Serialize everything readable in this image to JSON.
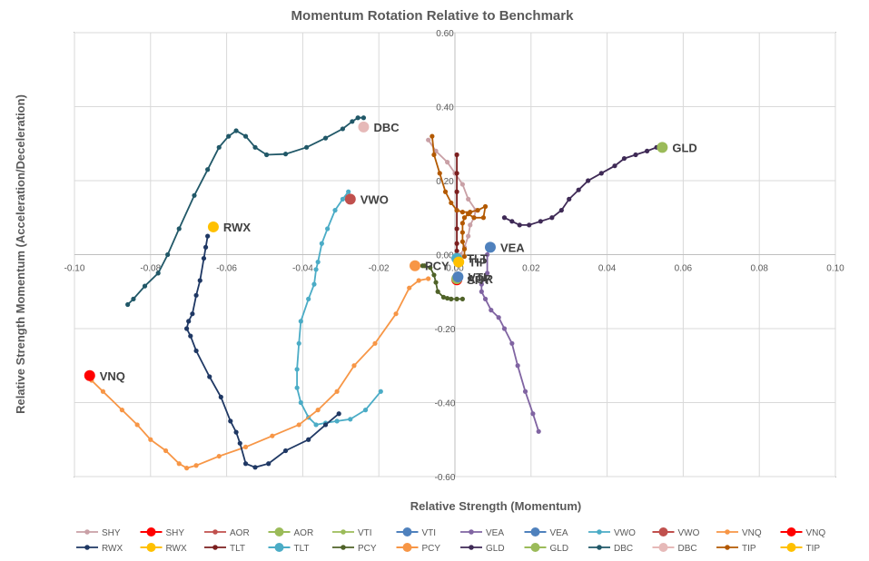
{
  "chart_data": {
    "type": "scatter",
    "title": "Momentum Rotation Relative to Benchmark",
    "xlabel": "Relative Strength (Momentum)",
    "ylabel": "Relative Strength Momentum (Acceleration/Deceleration)",
    "xlim": [
      -0.1,
      0.1
    ],
    "ylim": [
      -0.6,
      0.6
    ],
    "x_ticks": [
      "-0.10",
      "-0.08",
      "-0.06",
      "-0.04",
      "-0.02",
      "0.00",
      "0.02",
      "0.04",
      "0.06",
      "0.08",
      "0.10"
    ],
    "y_ticks": [
      "0.60",
      "0.40",
      "0.20",
      "0.00",
      "-0.20",
      "-0.40",
      "-0.60"
    ],
    "grid": true,
    "legend_position": "bottom",
    "series": [
      {
        "name": "SHY",
        "color": "#c9a0a6",
        "label": "SHY",
        "label_color": "#ff0000",
        "trail": [
          [
            0.0015,
            0.0
          ],
          [
            0.0025,
            0.02
          ],
          [
            0.0035,
            0.05
          ],
          [
            0.004,
            0.08
          ],
          [
            0.005,
            0.1
          ],
          [
            0.0055,
            0.12
          ],
          [
            0.0035,
            0.15
          ],
          [
            0.002,
            0.19
          ],
          [
            0.0,
            0.22
          ],
          [
            -0.002,
            0.25
          ],
          [
            -0.005,
            0.28
          ],
          [
            -0.007,
            0.31
          ]
        ],
        "current": [
          0.0005,
          -0.068
        ]
      },
      {
        "name": "AOR",
        "color": "#c0504d",
        "label": "AOR",
        "label_color": "#9bbb59",
        "trail": [],
        "current": [
          0.0005,
          -0.065
        ]
      },
      {
        "name": "VTI",
        "color": "#9bbb59",
        "label": "VTI",
        "label_color": "#4f81bd",
        "trail": [],
        "current": [
          0.0008,
          -0.06
        ]
      },
      {
        "name": "VEA",
        "color": "#8064a2",
        "label": "VEA",
        "label_color": "#4f81bd",
        "trail": [
          [
            0.022,
            -0.478
          ],
          [
            0.0205,
            -0.43
          ],
          [
            0.0185,
            -0.37
          ],
          [
            0.0165,
            -0.3
          ],
          [
            0.015,
            -0.24
          ],
          [
            0.013,
            -0.2
          ],
          [
            0.0115,
            -0.17
          ],
          [
            0.0095,
            -0.15
          ],
          [
            0.008,
            -0.12
          ],
          [
            0.007,
            -0.1
          ],
          [
            0.007,
            -0.08
          ],
          [
            0.0085,
            -0.05
          ],
          [
            0.0085,
            0.0
          ],
          [
            0.009,
            0.02
          ]
        ],
        "current": [
          0.0093,
          0.02
        ]
      },
      {
        "name": "VWO",
        "color": "#4bacc6",
        "label": "VWO",
        "label_color": "#c0504d",
        "trail": [
          [
            -0.0195,
            -0.37
          ],
          [
            -0.0235,
            -0.42
          ],
          [
            -0.0275,
            -0.445
          ],
          [
            -0.031,
            -0.45
          ],
          [
            -0.034,
            -0.455
          ],
          [
            -0.0365,
            -0.46
          ],
          [
            -0.0385,
            -0.44
          ],
          [
            -0.0405,
            -0.4
          ],
          [
            -0.0415,
            -0.36
          ],
          [
            -0.0415,
            -0.31
          ],
          [
            -0.041,
            -0.24
          ],
          [
            -0.0405,
            -0.18
          ],
          [
            -0.0385,
            -0.12
          ],
          [
            -0.037,
            -0.08
          ],
          [
            -0.0365,
            -0.04
          ],
          [
            -0.036,
            -0.02
          ],
          [
            -0.035,
            0.03
          ],
          [
            -0.0335,
            0.07
          ],
          [
            -0.0315,
            0.12
          ],
          [
            -0.0295,
            0.15
          ],
          [
            -0.028,
            0.17
          ]
        ],
        "current": [
          -0.0275,
          0.15
        ]
      },
      {
        "name": "VNQ",
        "color": "#f79646",
        "label": "VNQ",
        "label_color": "#ff0000",
        "trail": [
          [
            -0.007,
            -0.065
          ],
          [
            -0.0095,
            -0.07
          ],
          [
            -0.012,
            -0.09
          ],
          [
            -0.0155,
            -0.16
          ],
          [
            -0.021,
            -0.24
          ],
          [
            -0.0265,
            -0.3
          ],
          [
            -0.031,
            -0.37
          ],
          [
            -0.036,
            -0.42
          ],
          [
            -0.041,
            -0.46
          ],
          [
            -0.048,
            -0.49
          ],
          [
            -0.055,
            -0.52
          ],
          [
            -0.062,
            -0.545
          ],
          [
            -0.068,
            -0.57
          ],
          [
            -0.0705,
            -0.577
          ],
          [
            -0.0725,
            -0.565
          ],
          [
            -0.076,
            -0.53
          ],
          [
            -0.08,
            -0.5
          ],
          [
            -0.0835,
            -0.46
          ],
          [
            -0.0875,
            -0.42
          ],
          [
            -0.0925,
            -0.37
          ],
          [
            -0.0955,
            -0.34
          ]
        ],
        "current": [
          -0.096,
          -0.327
        ]
      },
      {
        "name": "RWX",
        "color": "#1f3864",
        "label": "RWX",
        "label_color": "#ffc000",
        "trail": [
          [
            -0.0305,
            -0.43
          ],
          [
            -0.034,
            -0.46
          ],
          [
            -0.0385,
            -0.5
          ],
          [
            -0.0445,
            -0.53
          ],
          [
            -0.049,
            -0.565
          ],
          [
            -0.0525,
            -0.575
          ],
          [
            -0.055,
            -0.565
          ],
          [
            -0.0565,
            -0.51
          ],
          [
            -0.0575,
            -0.48
          ],
          [
            -0.059,
            -0.45
          ],
          [
            -0.0615,
            -0.385
          ],
          [
            -0.0645,
            -0.33
          ],
          [
            -0.068,
            -0.26
          ],
          [
            -0.0695,
            -0.22
          ],
          [
            -0.0705,
            -0.2
          ],
          [
            -0.07,
            -0.18
          ],
          [
            -0.069,
            -0.16
          ],
          [
            -0.068,
            -0.11
          ],
          [
            -0.067,
            -0.07
          ],
          [
            -0.066,
            -0.01
          ],
          [
            -0.0655,
            0.02
          ],
          [
            -0.065,
            0.05
          ]
        ],
        "current": [
          -0.0635,
          0.075
        ]
      },
      {
        "name": "TLT",
        "color": "#7b1f1f",
        "label": "TLT",
        "label_color": "#4bacc6",
        "trail": [
          [
            0.0005,
            0.27
          ],
          [
            0.0005,
            0.22
          ],
          [
            0.0005,
            0.17
          ],
          [
            0.0005,
            0.12
          ],
          [
            0.0005,
            0.07
          ],
          [
            0.0005,
            0.03
          ],
          [
            0.0005,
            0.01
          ]
        ],
        "current": [
          0.0005,
          -0.01
        ]
      },
      {
        "name": "PCY",
        "color": "#4f6228",
        "label": "PCY",
        "label_color": "#f79646",
        "trail": [
          [
            0.002,
            -0.12
          ],
          [
            0.0005,
            -0.12
          ],
          [
            -0.001,
            -0.12
          ],
          [
            -0.002,
            -0.118
          ],
          [
            -0.003,
            -0.115
          ],
          [
            -0.0045,
            -0.1
          ],
          [
            -0.005,
            -0.075
          ],
          [
            -0.0055,
            -0.055
          ],
          [
            -0.0065,
            -0.035
          ],
          [
            -0.008,
            -0.03
          ],
          [
            -0.0085,
            -0.03
          ]
        ],
        "current": [
          -0.0105,
          -0.03
        ]
      },
      {
        "name": "GLD",
        "color": "#3f2a56",
        "label": "GLD",
        "label_color": "#9bbb59",
        "trail": [
          [
            0.013,
            0.1
          ],
          [
            0.015,
            0.09
          ],
          [
            0.017,
            0.08
          ],
          [
            0.0195,
            0.08
          ],
          [
            0.0225,
            0.09
          ],
          [
            0.0255,
            0.1
          ],
          [
            0.028,
            0.12
          ],
          [
            0.03,
            0.15
          ],
          [
            0.0325,
            0.175
          ],
          [
            0.035,
            0.2
          ],
          [
            0.0385,
            0.22
          ],
          [
            0.042,
            0.24
          ],
          [
            0.0445,
            0.26
          ],
          [
            0.0475,
            0.27
          ],
          [
            0.0505,
            0.28
          ],
          [
            0.053,
            0.29
          ]
        ],
        "current": [
          0.0545,
          0.29
        ]
      },
      {
        "name": "DBC",
        "color": "#215868",
        "label": "DBC",
        "label_color": "#e6b9b8",
        "trail": [
          [
            -0.086,
            -0.135
          ],
          [
            -0.0845,
            -0.12
          ],
          [
            -0.0815,
            -0.085
          ],
          [
            -0.078,
            -0.05
          ],
          [
            -0.0755,
            0.0
          ],
          [
            -0.0725,
            0.07
          ],
          [
            -0.0685,
            0.16
          ],
          [
            -0.065,
            0.23
          ],
          [
            -0.062,
            0.29
          ],
          [
            -0.0595,
            0.32
          ],
          [
            -0.0575,
            0.335
          ],
          [
            -0.055,
            0.32
          ],
          [
            -0.0525,
            0.29
          ],
          [
            -0.0495,
            0.27
          ],
          [
            -0.0445,
            0.272
          ],
          [
            -0.039,
            0.29
          ],
          [
            -0.034,
            0.315
          ],
          [
            -0.0295,
            0.34
          ],
          [
            -0.027,
            0.36
          ],
          [
            -0.0255,
            0.37
          ],
          [
            -0.024,
            0.37
          ]
        ],
        "current": [
          -0.024,
          0.345
        ]
      },
      {
        "name": "TIP",
        "color": "#b35900",
        "label": "TIP",
        "label_color": "#ffc000",
        "trail": [
          [
            -0.006,
            0.32
          ],
          [
            -0.0055,
            0.27
          ],
          [
            -0.004,
            0.22
          ],
          [
            -0.0025,
            0.17
          ],
          [
            -0.001,
            0.14
          ],
          [
            0.0005,
            0.12
          ],
          [
            0.002,
            0.115
          ],
          [
            0.004,
            0.115
          ],
          [
            0.006,
            0.12
          ],
          [
            0.008,
            0.13
          ],
          [
            0.0075,
            0.1
          ],
          [
            0.005,
            0.1
          ],
          [
            0.0035,
            0.11
          ],
          [
            0.0025,
            0.1
          ],
          [
            0.002,
            0.085
          ],
          [
            0.002,
            0.06
          ],
          [
            0.002,
            0.035
          ],
          [
            0.0025,
            0.015
          ],
          [
            0.0025,
            -0.005
          ]
        ],
        "current": [
          0.001,
          -0.02
        ]
      }
    ],
    "legend": [
      {
        "label": "SHY",
        "kind": "line",
        "color": "#c9a0a6"
      },
      {
        "label": "SHY",
        "kind": "dot",
        "color": "#ff0000"
      },
      {
        "label": "AOR",
        "kind": "line",
        "color": "#c0504d"
      },
      {
        "label": "AOR",
        "kind": "dot",
        "color": "#9bbb59"
      },
      {
        "label": "VTI",
        "kind": "line",
        "color": "#9bbb59"
      },
      {
        "label": "VTI",
        "kind": "dot",
        "color": "#4f81bd"
      },
      {
        "label": "VEA",
        "kind": "line",
        "color": "#8064a2"
      },
      {
        "label": "VEA",
        "kind": "dot",
        "color": "#4f81bd"
      },
      {
        "label": "VWO",
        "kind": "line",
        "color": "#4bacc6"
      },
      {
        "label": "VWO",
        "kind": "dot",
        "color": "#c0504d"
      },
      {
        "label": "VNQ",
        "kind": "line",
        "color": "#f79646"
      },
      {
        "label": "VNQ",
        "kind": "dot",
        "color": "#ff0000"
      },
      {
        "label": "RWX",
        "kind": "line",
        "color": "#1f3864"
      },
      {
        "label": "RWX",
        "kind": "dot",
        "color": "#ffc000"
      },
      {
        "label": "TLT",
        "kind": "line",
        "color": "#7b1f1f"
      },
      {
        "label": "TLT",
        "kind": "dot",
        "color": "#4bacc6"
      },
      {
        "label": "PCY",
        "kind": "line",
        "color": "#4f6228"
      },
      {
        "label": "PCY",
        "kind": "dot",
        "color": "#f79646"
      },
      {
        "label": "GLD",
        "kind": "line",
        "color": "#3f2a56"
      },
      {
        "label": "GLD",
        "kind": "dot",
        "color": "#9bbb59"
      },
      {
        "label": "DBC",
        "kind": "line",
        "color": "#215868"
      },
      {
        "label": "DBC",
        "kind": "dot",
        "color": "#e6b9b8"
      },
      {
        "label": "TIP",
        "kind": "line",
        "color": "#b35900"
      },
      {
        "label": "TIP",
        "kind": "dot",
        "color": "#ffc000"
      }
    ]
  }
}
